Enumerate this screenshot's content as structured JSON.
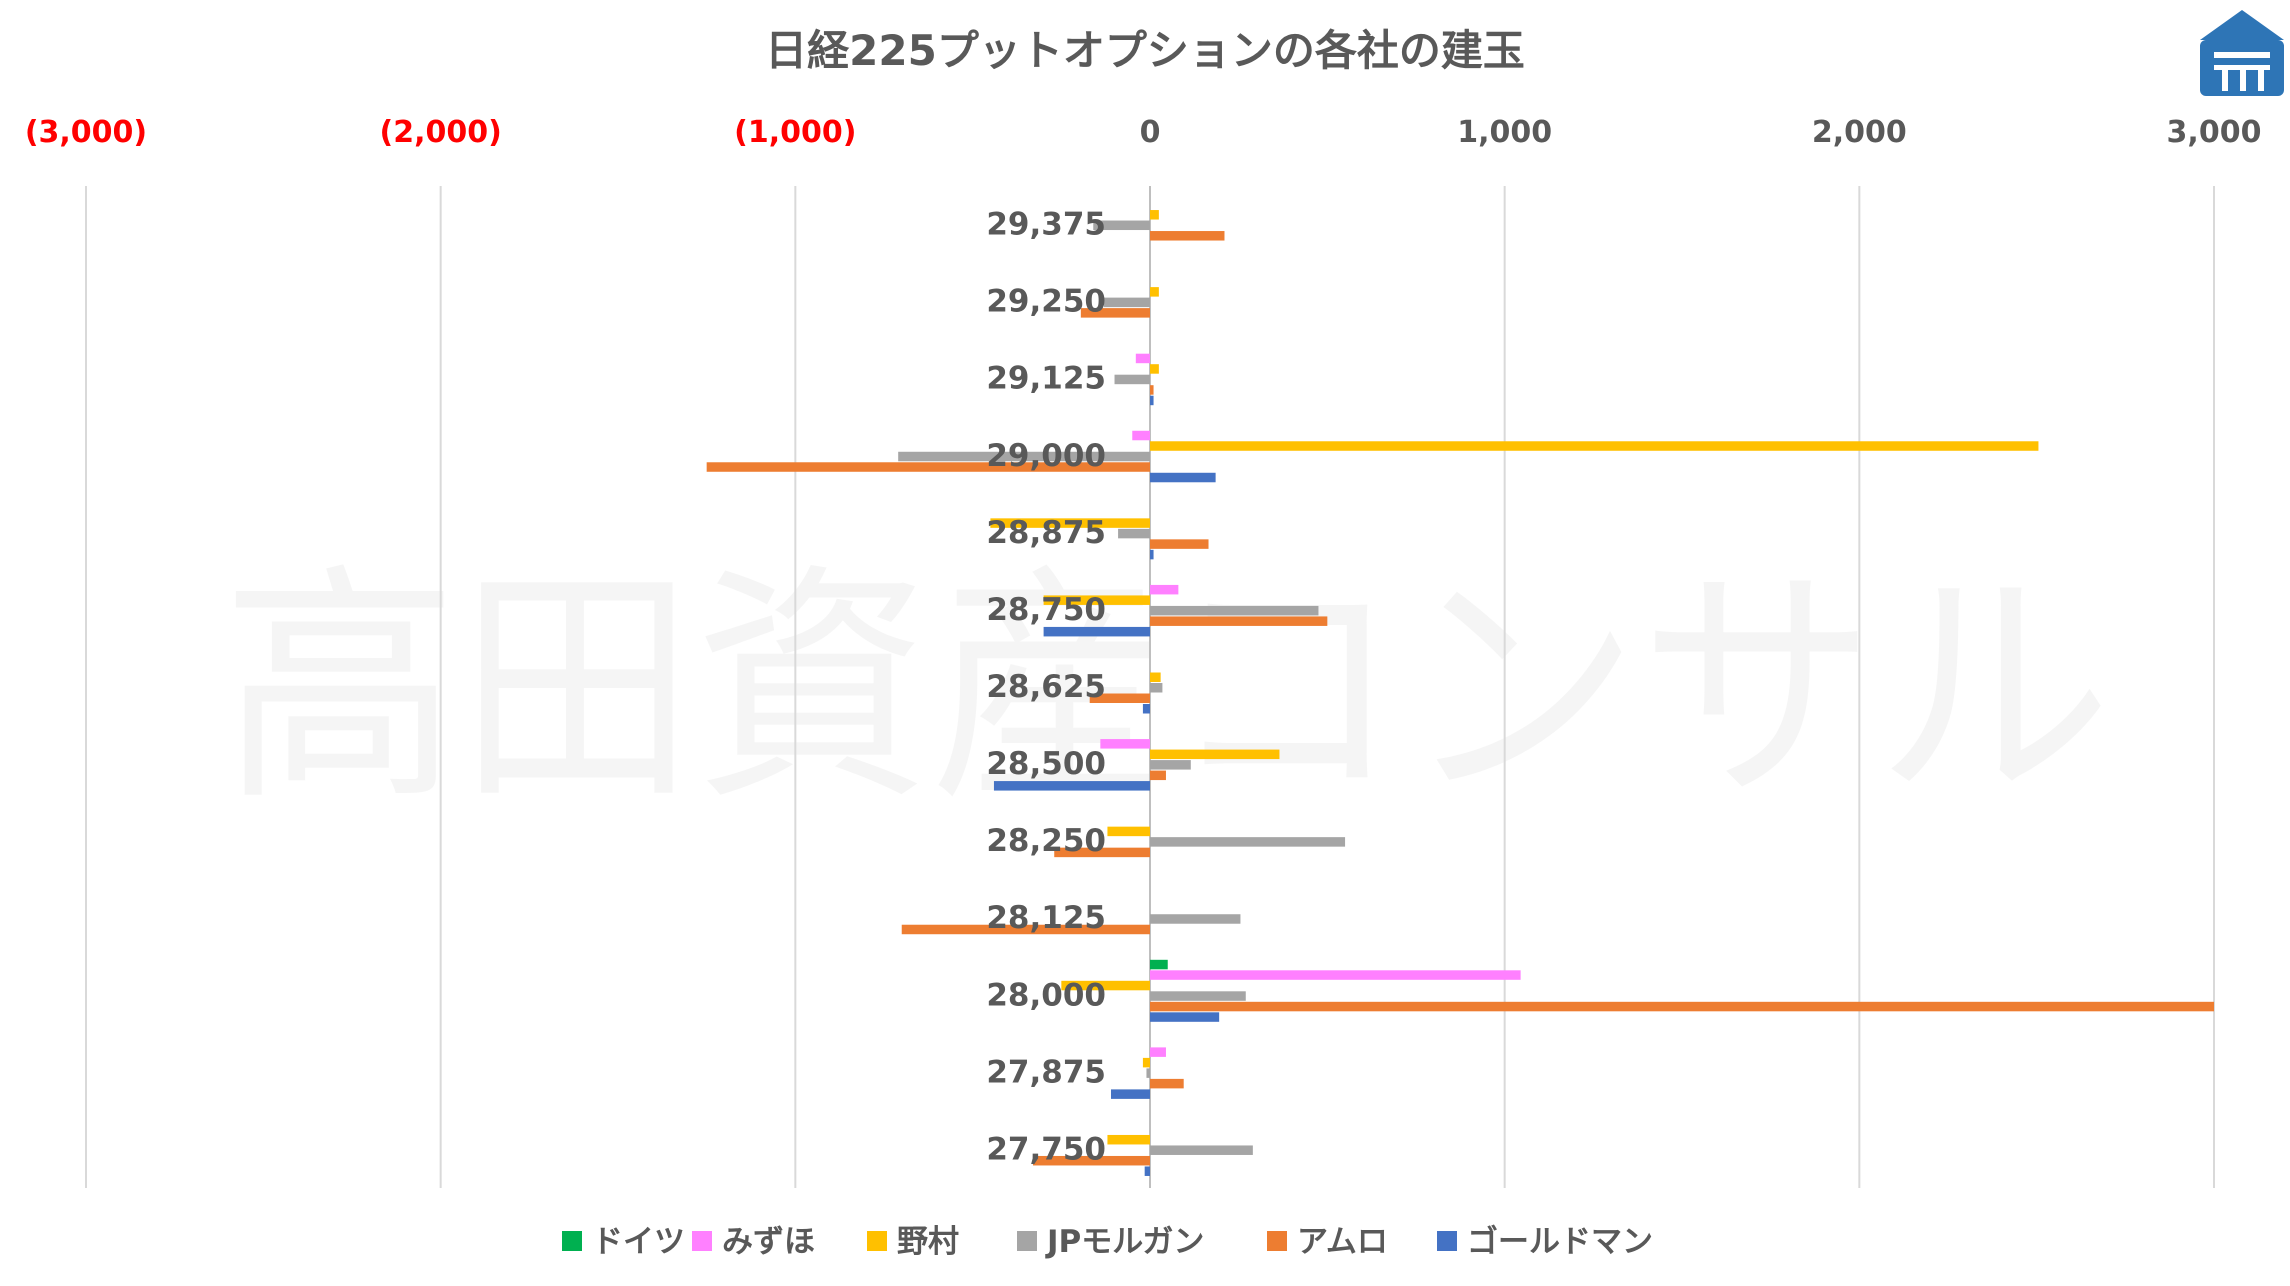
{
  "chart_data": {
    "type": "bar",
    "orientation": "horizontal",
    "title": "日経225プットオプションの各社の建玉",
    "watermark": "高田資産コンサル",
    "xlim": [
      -3000,
      3000
    ],
    "xticks": [
      -3000,
      -2000,
      -1000,
      0,
      1000,
      2000,
      3000
    ],
    "xtick_labels": [
      "(3,000)",
      "(2,000)",
      "(1,000)",
      "0",
      "1,000",
      "2,000",
      "3,000"
    ],
    "negative_tick_color": "#ff0000",
    "positive_tick_color": "#595959",
    "grid": "vertical",
    "legend_position": "bottom",
    "categories": [
      "29,375",
      "29,250",
      "29,125",
      "29,000",
      "28,875",
      "28,750",
      "28,625",
      "28,500",
      "28,250",
      "28,125",
      "28,000",
      "27,875",
      "27,750"
    ],
    "series": [
      {
        "name": "ドイツ",
        "color": "#00b050",
        "values": [
          0,
          0,
          0,
          0,
          0,
          0,
          0,
          0,
          0,
          0,
          50,
          0,
          0
        ]
      },
      {
        "name": "みずほ",
        "color": "#ff80ff",
        "values": [
          0,
          0,
          -40,
          -50,
          0,
          80,
          0,
          -140,
          0,
          0,
          1045,
          45,
          0
        ]
      },
      {
        "name": "野村",
        "color": "#ffc000",
        "values": [
          25,
          25,
          25,
          2505,
          -450,
          -300,
          30,
          365,
          -120,
          0,
          -250,
          -20,
          -120
        ]
      },
      {
        "name": "JPモルガン",
        "color": "#a5a5a5",
        "values": [
          -160,
          -130,
          -100,
          -710,
          -90,
          475,
          35,
          115,
          550,
          255,
          270,
          -10,
          290
        ]
      },
      {
        "name": "アムロ",
        "color": "#ed7d31",
        "values": [
          210,
          -195,
          10,
          -1250,
          165,
          500,
          -170,
          45,
          -270,
          -700,
          3000,
          95,
          -330
        ]
      },
      {
        "name": "ゴールドマン",
        "color": "#4472c4",
        "values": [
          0,
          0,
          10,
          185,
          10,
          -300,
          -20,
          -440,
          0,
          0,
          195,
          -110,
          -15
        ]
      }
    ]
  },
  "logo": {
    "name": "logo-icon",
    "color": "#2e75b6"
  }
}
